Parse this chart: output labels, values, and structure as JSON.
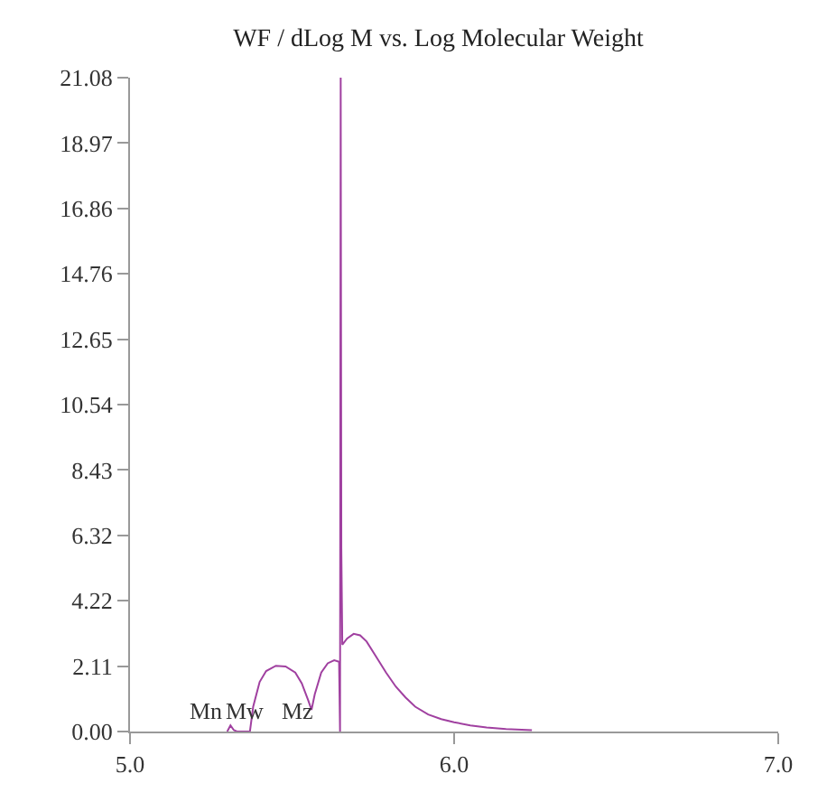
{
  "chart_data": {
    "type": "line",
    "title": "WF / dLog M vs. Log Molecular Weight",
    "x": [
      5.3,
      5.31,
      5.32,
      5.33,
      5.37,
      5.38,
      5.4,
      5.42,
      5.45,
      5.48,
      5.51,
      5.53,
      5.55,
      5.56,
      5.57,
      5.59,
      5.61,
      5.63,
      5.645,
      5.648,
      5.65,
      5.652,
      5.655,
      5.67,
      5.69,
      5.71,
      5.73,
      5.76,
      5.79,
      5.82,
      5.85,
      5.88,
      5.92,
      5.96,
      6.0,
      6.05,
      6.1,
      6.16,
      6.24
    ],
    "series": [
      {
        "color": "#a040a0",
        "values": [
          0,
          0.2,
          0.05,
          0,
          0,
          0.8,
          1.6,
          1.95,
          2.12,
          2.1,
          1.9,
          1.55,
          1.0,
          0.7,
          1.2,
          1.9,
          2.2,
          2.3,
          2.25,
          0,
          21.08,
          5.9,
          2.8,
          3.0,
          3.15,
          3.1,
          2.9,
          2.4,
          1.9,
          1.45,
          1.1,
          0.8,
          0.55,
          0.4,
          0.3,
          0.2,
          0.13,
          0.08,
          0.04
        ]
      }
    ],
    "annotations": [
      "Mn",
      "Mw",
      "Mz"
    ],
    "xlim": [
      5.0,
      7.0
    ],
    "xticks": [
      {
        "value": 5.0,
        "label": "5.0"
      },
      {
        "value": 6.0,
        "label": "6.0"
      },
      {
        "value": 7.0,
        "label": "7.0"
      }
    ],
    "ylim": [
      0,
      21.08
    ],
    "yticks": [
      {
        "value": 0,
        "label": "0.00"
      },
      {
        "value": 2.11,
        "label": "2.11"
      },
      {
        "value": 4.22,
        "label": "4.22"
      },
      {
        "value": 6.32,
        "label": "6.32"
      },
      {
        "value": 8.43,
        "label": "8.43"
      },
      {
        "value": 10.54,
        "label": "10.54"
      },
      {
        "value": 12.65,
        "label": "12.65"
      },
      {
        "value": 14.76,
        "label": "14.76"
      },
      {
        "value": 16.86,
        "label": "16.86"
      },
      {
        "value": 18.97,
        "label": "18.97"
      },
      {
        "value": 21.08,
        "label": "21.08"
      }
    ],
    "marker": "none",
    "line_style": "solid"
  }
}
